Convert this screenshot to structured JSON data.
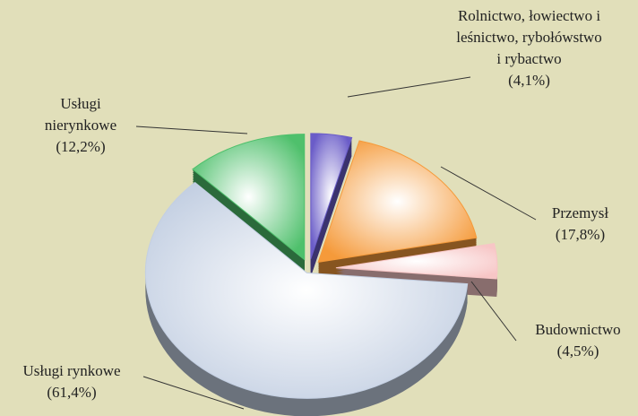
{
  "chart_data": {
    "type": "pie",
    "categories": [
      "Rolnictwo, łowiectwo i leśnictwo, rybołówstwo i rybactwo",
      "Przemysł",
      "Budownictwo",
      "Usługi rynkowe",
      "Usługi nierynkowe"
    ],
    "values": [
      4.1,
      17.8,
      4.5,
      61.4,
      12.2
    ],
    "value_labels": [
      "(4,1%)",
      "(17,8%)",
      "(4,5%)",
      "(61,4%)",
      "(12,2%)"
    ],
    "colors": [
      "#6a5cc8",
      "#f59a3a",
      "#f7c6c6",
      "#c3cfe2",
      "#4fc06c"
    ]
  }
}
